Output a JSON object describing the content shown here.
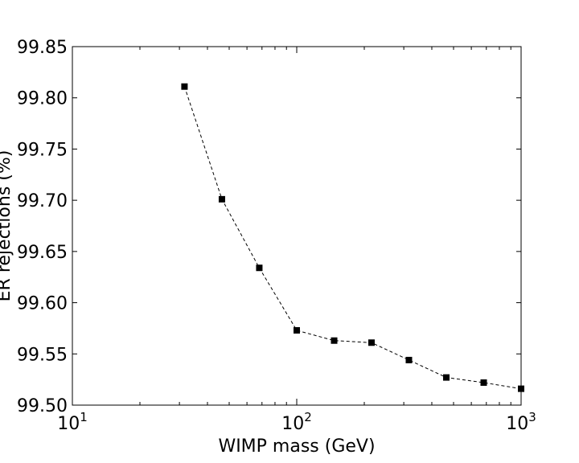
{
  "chart_data": {
    "type": "scatter",
    "xlabel": "WIMP mass (GeV)",
    "ylabel": "ER rejections (%)",
    "xscale": "log",
    "xlim": [
      10,
      1000
    ],
    "ylim": [
      99.5,
      99.85
    ],
    "x_ticks": [
      {
        "base": "10",
        "exp": "1"
      },
      {
        "base": "10",
        "exp": "2"
      },
      {
        "base": "10",
        "exp": "3"
      }
    ],
    "y_ticks": [
      "99.50",
      "99.55",
      "99.60",
      "99.65",
      "99.70",
      "99.75",
      "99.80",
      "99.85"
    ],
    "grid": false,
    "line_style": "dashed",
    "marker": "square",
    "color": "#000000",
    "x": [
      31.6,
      46.4,
      68.1,
      100,
      146.8,
      215.4,
      316.2,
      464.2,
      681.3,
      1000
    ],
    "y": [
      99.811,
      99.701,
      99.634,
      99.573,
      99.563,
      99.561,
      99.544,
      99.527,
      99.522,
      99.516
    ]
  }
}
